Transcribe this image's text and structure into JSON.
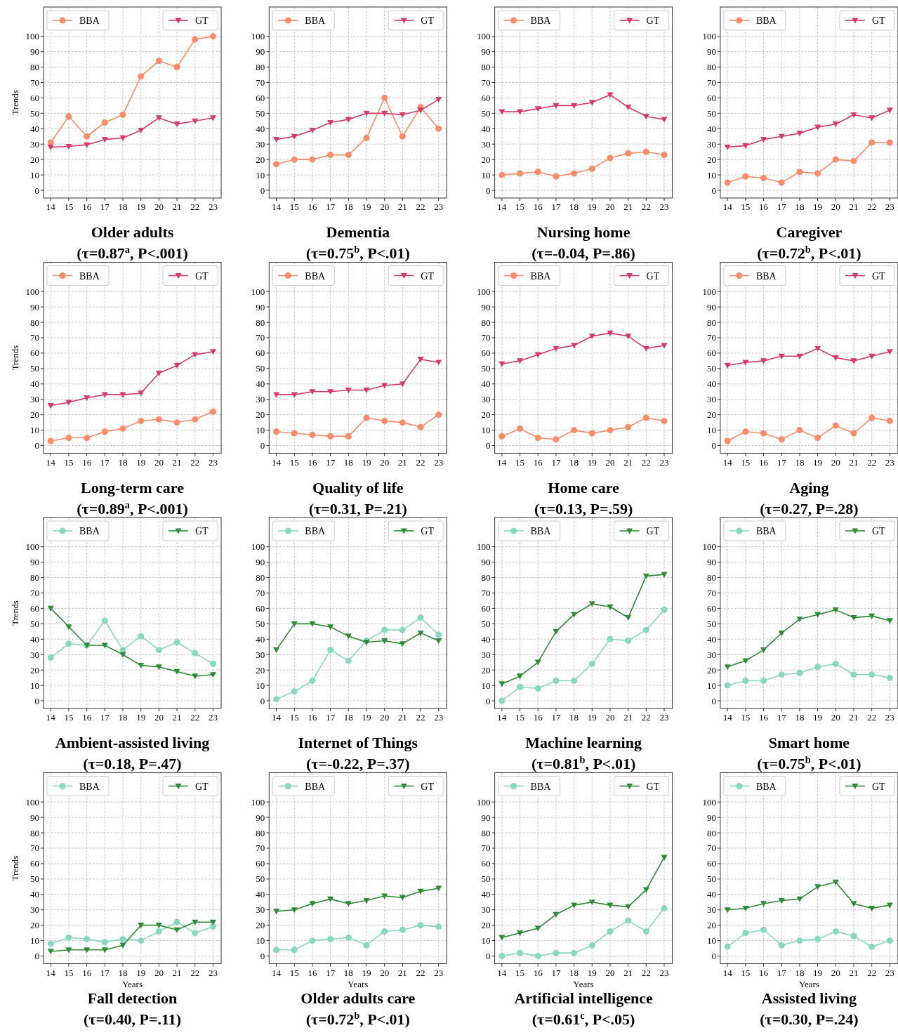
{
  "chart_data": [
    {
      "type": "line",
      "title": "Older adults",
      "subtitle": "(τ=0.87$^{a}$, P<.001)",
      "ylabel": "Trends",
      "x": [
        14,
        15,
        16,
        17,
        18,
        19,
        20,
        21,
        22,
        23
      ],
      "xlim": [
        13.6,
        23.45
      ],
      "ylim": [
        -5,
        119
      ],
      "xticks": [
        14,
        15,
        16,
        17,
        18,
        19,
        20,
        21,
        22,
        23
      ],
      "yticks": [
        0,
        10,
        20,
        30,
        40,
        50,
        60,
        70,
        80,
        90,
        100
      ],
      "grid": true,
      "legend": "top",
      "series": [
        {
          "name": "BBA",
          "color": "#ff8c69",
          "marker": "circle",
          "values": [
            31,
            48,
            35,
            44,
            49,
            74,
            84,
            80,
            98,
            100
          ]
        },
        {
          "name": "GT",
          "color": "#d63a6a",
          "marker": "triangle",
          "values": [
            28,
            28.5,
            29.5,
            33,
            34,
            39,
            47,
            43,
            45,
            47
          ]
        }
      ]
    },
    {
      "type": "line",
      "title": "Dementia",
      "subtitle": "(τ=0.75$^{b}$, P<.01)",
      "x": [
        14,
        15,
        16,
        17,
        18,
        19,
        20,
        21,
        22,
        23
      ],
      "xlim": [
        13.6,
        23.45
      ],
      "ylim": [
        -5,
        119
      ],
      "xticks": [
        14,
        15,
        16,
        17,
        18,
        19,
        20,
        21,
        22,
        23
      ],
      "yticks": [
        0,
        10,
        20,
        30,
        40,
        50,
        60,
        70,
        80,
        90,
        100
      ],
      "grid": true,
      "legend": "top",
      "series": [
        {
          "name": "BBA",
          "color": "#ff8c69",
          "marker": "circle",
          "values": [
            17,
            20,
            20,
            23,
            23,
            34,
            60,
            35,
            54,
            40
          ]
        },
        {
          "name": "GT",
          "color": "#d63a6a",
          "marker": "triangle",
          "values": [
            33,
            35,
            39,
            44,
            46,
            50,
            50,
            49,
            52,
            59
          ]
        }
      ]
    },
    {
      "type": "line",
      "title": "Nursing home",
      "subtitle": "(τ=-0.04, P=.86)",
      "x": [
        14,
        15,
        16,
        17,
        18,
        19,
        20,
        21,
        22,
        23
      ],
      "xlim": [
        13.6,
        23.45
      ],
      "ylim": [
        -5,
        119
      ],
      "xticks": [
        14,
        15,
        16,
        17,
        18,
        19,
        20,
        21,
        22,
        23
      ],
      "yticks": [
        0,
        10,
        20,
        30,
        40,
        50,
        60,
        70,
        80,
        90,
        100
      ],
      "grid": true,
      "legend": "top",
      "series": [
        {
          "name": "BBA",
          "color": "#ff8c69",
          "marker": "circle",
          "values": [
            10,
            11,
            12,
            9,
            11,
            14,
            21,
            24,
            25,
            23
          ]
        },
        {
          "name": "GT",
          "color": "#d63a6a",
          "marker": "triangle",
          "values": [
            51,
            51,
            53,
            55,
            55,
            57,
            62,
            54,
            48,
            46
          ]
        }
      ]
    },
    {
      "type": "line",
      "title": "Caregiver",
      "subtitle": "(τ=0.72$^{b}$, P<.01)",
      "x": [
        14,
        15,
        16,
        17,
        18,
        19,
        20,
        21,
        22,
        23
      ],
      "xlim": [
        13.6,
        23.45
      ],
      "ylim": [
        -5,
        119
      ],
      "xticks": [
        14,
        15,
        16,
        17,
        18,
        19,
        20,
        21,
        22,
        23
      ],
      "yticks": [
        0,
        10,
        20,
        30,
        40,
        50,
        60,
        70,
        80,
        90,
        100
      ],
      "grid": true,
      "legend": "top",
      "series": [
        {
          "name": "BBA",
          "color": "#ff8c69",
          "marker": "circle",
          "values": [
            5,
            9,
            8,
            5,
            12,
            11,
            20,
            19,
            31,
            31
          ]
        },
        {
          "name": "GT",
          "color": "#d63a6a",
          "marker": "triangle",
          "values": [
            28,
            29,
            33,
            35,
            37,
            41,
            43,
            49,
            47,
            52
          ]
        }
      ]
    },
    {
      "type": "line",
      "title": "Long-term care",
      "subtitle": "(τ=0.89$^{a}$, P<.001)",
      "ylabel": "Trends",
      "x": [
        14,
        15,
        16,
        17,
        18,
        19,
        20,
        21,
        22,
        23
      ],
      "xlim": [
        13.6,
        23.45
      ],
      "ylim": [
        -5,
        119
      ],
      "xticks": [
        14,
        15,
        16,
        17,
        18,
        19,
        20,
        21,
        22,
        23
      ],
      "yticks": [
        0,
        10,
        20,
        30,
        40,
        50,
        60,
        70,
        80,
        90,
        100
      ],
      "grid": true,
      "legend": "top",
      "series": [
        {
          "name": "BBA",
          "color": "#ff8c69",
          "marker": "circle",
          "values": [
            3,
            5,
            5,
            9,
            11,
            16,
            17,
            15,
            17,
            22
          ]
        },
        {
          "name": "GT",
          "color": "#d63a6a",
          "marker": "triangle",
          "values": [
            26,
            28,
            31,
            33,
            33,
            34,
            47,
            52,
            59,
            61
          ]
        }
      ]
    },
    {
      "type": "line",
      "title": "Quality of life",
      "subtitle": "(τ=0.31, P=.21)",
      "x": [
        14,
        15,
        16,
        17,
        18,
        19,
        20,
        21,
        22,
        23
      ],
      "xlim": [
        13.6,
        23.45
      ],
      "ylim": [
        -5,
        119
      ],
      "xticks": [
        14,
        15,
        16,
        17,
        18,
        19,
        20,
        21,
        22,
        23
      ],
      "yticks": [
        0,
        10,
        20,
        30,
        40,
        50,
        60,
        70,
        80,
        90,
        100
      ],
      "grid": true,
      "legend": "top",
      "series": [
        {
          "name": "BBA",
          "color": "#ff8c69",
          "marker": "circle",
          "values": [
            9,
            8,
            7,
            6,
            6,
            18,
            16,
            15,
            12,
            20
          ]
        },
        {
          "name": "GT",
          "color": "#d63a6a",
          "marker": "triangle",
          "values": [
            33,
            33,
            35,
            35,
            36,
            36,
            39,
            40,
            56,
            54
          ]
        }
      ]
    },
    {
      "type": "line",
      "title": "Home care",
      "subtitle": "(τ=0.13, P=.59)",
      "x": [
        14,
        15,
        16,
        17,
        18,
        19,
        20,
        21,
        22,
        23
      ],
      "xlim": [
        13.6,
        23.45
      ],
      "ylim": [
        -5,
        119
      ],
      "xticks": [
        14,
        15,
        16,
        17,
        18,
        19,
        20,
        21,
        22,
        23
      ],
      "yticks": [
        0,
        10,
        20,
        30,
        40,
        50,
        60,
        70,
        80,
        90,
        100
      ],
      "grid": true,
      "legend": "top",
      "series": [
        {
          "name": "BBA",
          "color": "#ff8c69",
          "marker": "circle",
          "values": [
            6,
            11,
            5,
            4,
            10,
            8,
            10,
            12,
            18,
            16
          ]
        },
        {
          "name": "GT",
          "color": "#d63a6a",
          "marker": "triangle",
          "values": [
            53,
            55,
            59,
            63,
            65,
            71,
            73,
            71,
            63,
            65
          ]
        }
      ]
    },
    {
      "type": "line",
      "title": "Aging",
      "subtitle": "(τ=0.27, P=.28)",
      "x": [
        14,
        15,
        16,
        17,
        18,
        19,
        20,
        21,
        22,
        23
      ],
      "xlim": [
        13.6,
        23.45
      ],
      "ylim": [
        -5,
        119
      ],
      "xticks": [
        14,
        15,
        16,
        17,
        18,
        19,
        20,
        21,
        22,
        23
      ],
      "yticks": [
        0,
        10,
        20,
        30,
        40,
        50,
        60,
        70,
        80,
        90,
        100
      ],
      "grid": true,
      "legend": "top",
      "series": [
        {
          "name": "BBA",
          "color": "#ff8c69",
          "marker": "circle",
          "values": [
            3,
            9,
            8,
            4,
            10,
            5,
            13,
            8,
            18,
            16
          ]
        },
        {
          "name": "GT",
          "color": "#d63a6a",
          "marker": "triangle",
          "values": [
            52,
            54,
            55,
            58,
            58,
            63,
            57,
            55,
            58,
            61
          ]
        }
      ]
    },
    {
      "type": "line",
      "title": "Ambient-assisted living",
      "subtitle": "(τ=0.18, P=.47)",
      "ylabel": "Trends",
      "x": [
        14,
        15,
        16,
        17,
        18,
        19,
        20,
        21,
        22,
        23
      ],
      "xlim": [
        13.6,
        23.45
      ],
      "ylim": [
        -5,
        119
      ],
      "xticks": [
        14,
        15,
        16,
        17,
        18,
        19,
        20,
        21,
        22,
        23
      ],
      "yticks": [
        0,
        10,
        20,
        30,
        40,
        50,
        60,
        70,
        80,
        90,
        100
      ],
      "grid": true,
      "legend": "top",
      "series": [
        {
          "name": "BBA",
          "color": "#88d8c0",
          "marker": "circle",
          "values": [
            28,
            37,
            36,
            52,
            33,
            42,
            33,
            38,
            31,
            24
          ]
        },
        {
          "name": "GT",
          "color": "#2e8b35",
          "marker": "triangle",
          "values": [
            60,
            48,
            36,
            36,
            30,
            23,
            22,
            19,
            16,
            17
          ]
        }
      ]
    },
    {
      "type": "line",
      "title": "Internet of Things",
      "subtitle": "(τ=-0.22, P=.37)",
      "x": [
        14,
        15,
        16,
        17,
        18,
        19,
        20,
        21,
        22,
        23
      ],
      "xlim": [
        13.6,
        23.45
      ],
      "ylim": [
        -5,
        119
      ],
      "xticks": [
        14,
        15,
        16,
        17,
        18,
        19,
        20,
        21,
        22,
        23
      ],
      "yticks": [
        0,
        10,
        20,
        30,
        40,
        50,
        60,
        70,
        80,
        90,
        100
      ],
      "grid": true,
      "legend": "top",
      "series": [
        {
          "name": "BBA",
          "color": "#88d8c0",
          "marker": "circle",
          "values": [
            1,
            6,
            13,
            33,
            26,
            39,
            46,
            46,
            54,
            43
          ]
        },
        {
          "name": "GT",
          "color": "#2e8b35",
          "marker": "triangle",
          "values": [
            33,
            50,
            50,
            48,
            42,
            38,
            39,
            37,
            44,
            39
          ]
        }
      ]
    },
    {
      "type": "line",
      "title": "Machine learning",
      "subtitle": "(τ=0.81$^{b}$, P<.01)",
      "x": [
        14,
        15,
        16,
        17,
        18,
        19,
        20,
        21,
        22,
        23
      ],
      "xlim": [
        13.6,
        23.45
      ],
      "ylim": [
        -5,
        119
      ],
      "xticks": [
        14,
        15,
        16,
        17,
        18,
        19,
        20,
        21,
        22,
        23
      ],
      "yticks": [
        0,
        10,
        20,
        30,
        40,
        50,
        60,
        70,
        80,
        90,
        100
      ],
      "grid": true,
      "legend": "top",
      "series": [
        {
          "name": "BBA",
          "color": "#88d8c0",
          "marker": "circle",
          "values": [
            0,
            9,
            8,
            13,
            13,
            24,
            40,
            39,
            46,
            59
          ]
        },
        {
          "name": "GT",
          "color": "#2e8b35",
          "marker": "triangle",
          "values": [
            11,
            16,
            25,
            45,
            56,
            63,
            61,
            54,
            81,
            82
          ]
        }
      ]
    },
    {
      "type": "line",
      "title": "Smart home",
      "subtitle": "(τ=0.75$^{b}$, P<.01)",
      "x": [
        14,
        15,
        16,
        17,
        18,
        19,
        20,
        21,
        22,
        23
      ],
      "xlim": [
        13.6,
        23.45
      ],
      "ylim": [
        -5,
        119
      ],
      "xticks": [
        14,
        15,
        16,
        17,
        18,
        19,
        20,
        21,
        22,
        23
      ],
      "yticks": [
        0,
        10,
        20,
        30,
        40,
        50,
        60,
        70,
        80,
        90,
        100
      ],
      "grid": true,
      "legend": "top",
      "series": [
        {
          "name": "BBA",
          "color": "#88d8c0",
          "marker": "circle",
          "values": [
            10,
            13,
            13,
            17,
            18,
            22,
            24,
            17,
            17,
            15
          ]
        },
        {
          "name": "GT",
          "color": "#2e8b35",
          "marker": "triangle",
          "values": [
            22,
            26,
            33,
            44,
            53,
            56,
            59,
            54,
            55,
            52
          ]
        }
      ]
    },
    {
      "type": "line",
      "title": "Fall detection",
      "subtitle": "(τ=0.40, P=.11)",
      "ylabel": "Trends",
      "xlabel": "Years",
      "x": [
        14,
        15,
        16,
        17,
        18,
        19,
        20,
        21,
        22,
        23
      ],
      "xlim": [
        13.6,
        23.45
      ],
      "ylim": [
        -5,
        119
      ],
      "xticks": [
        14,
        15,
        16,
        17,
        18,
        19,
        20,
        21,
        22,
        23
      ],
      "yticks": [
        0,
        10,
        20,
        30,
        40,
        50,
        60,
        70,
        80,
        90,
        100
      ],
      "grid": true,
      "legend": "top",
      "series": [
        {
          "name": "BBA",
          "color": "#88d8c0",
          "marker": "circle",
          "values": [
            8,
            12,
            11,
            9,
            11,
            10,
            16,
            22,
            15,
            19
          ]
        },
        {
          "name": "GT",
          "color": "#2e8b35",
          "marker": "triangle",
          "values": [
            3,
            4,
            4,
            4,
            7,
            20,
            20,
            17,
            22,
            22
          ]
        }
      ]
    },
    {
      "type": "line",
      "title": "Older adults care",
      "subtitle": "(τ=0.72$^{b}$, P<.01)",
      "xlabel": "Years",
      "x": [
        14,
        15,
        16,
        17,
        18,
        19,
        20,
        21,
        22,
        23
      ],
      "xlim": [
        13.6,
        23.45
      ],
      "ylim": [
        -5,
        119
      ],
      "xticks": [
        14,
        15,
        16,
        17,
        18,
        19,
        20,
        21,
        22,
        23
      ],
      "yticks": [
        0,
        10,
        20,
        30,
        40,
        50,
        60,
        70,
        80,
        90,
        100
      ],
      "grid": true,
      "legend": "top",
      "series": [
        {
          "name": "BBA",
          "color": "#88d8c0",
          "marker": "circle",
          "values": [
            4,
            4,
            10,
            11,
            12,
            7,
            16,
            17,
            20,
            19
          ]
        },
        {
          "name": "GT",
          "color": "#2e8b35",
          "marker": "triangle",
          "values": [
            29,
            30,
            34,
            37,
            34,
            36,
            39,
            38,
            42,
            44
          ]
        }
      ]
    },
    {
      "type": "line",
      "title": "Artificial intelligence",
      "subtitle": "(τ=0.61$^{c}$, P<.05)",
      "xlabel": "Years",
      "x": [
        14,
        15,
        16,
        17,
        18,
        19,
        20,
        21,
        22,
        23
      ],
      "xlim": [
        13.6,
        23.45
      ],
      "ylim": [
        -5,
        119
      ],
      "xticks": [
        14,
        15,
        16,
        17,
        18,
        19,
        20,
        21,
        22,
        23
      ],
      "yticks": [
        0,
        10,
        20,
        30,
        40,
        50,
        60,
        70,
        80,
        90,
        100
      ],
      "grid": true,
      "legend": "top",
      "series": [
        {
          "name": "BBA",
          "color": "#88d8c0",
          "marker": "circle",
          "values": [
            0,
            2,
            0,
            2,
            2,
            7,
            16,
            23,
            16,
            31
          ]
        },
        {
          "name": "GT",
          "color": "#2e8b35",
          "marker": "triangle",
          "values": [
            12,
            15,
            18,
            27,
            33,
            35,
            33,
            32,
            43,
            64
          ]
        }
      ]
    },
    {
      "type": "line",
      "title": "Assisted living",
      "subtitle": "(τ=0.30, P=.24)",
      "xlabel": "Years",
      "x": [
        14,
        15,
        16,
        17,
        18,
        19,
        20,
        21,
        22,
        23
      ],
      "xlim": [
        13.6,
        23.45
      ],
      "ylim": [
        -5,
        119
      ],
      "xticks": [
        14,
        15,
        16,
        17,
        18,
        19,
        20,
        21,
        22,
        23
      ],
      "yticks": [
        0,
        10,
        20,
        30,
        40,
        50,
        60,
        70,
        80,
        90,
        100
      ],
      "grid": true,
      "legend": "top",
      "series": [
        {
          "name": "BBA",
          "color": "#88d8c0",
          "marker": "circle",
          "values": [
            6,
            15,
            17,
            7,
            10,
            11,
            16,
            13,
            6,
            10
          ]
        },
        {
          "name": "GT",
          "color": "#2e8b35",
          "marker": "triangle",
          "values": [
            30,
            31,
            34,
            36,
            37,
            45,
            48,
            34,
            31,
            33
          ]
        }
      ]
    }
  ]
}
